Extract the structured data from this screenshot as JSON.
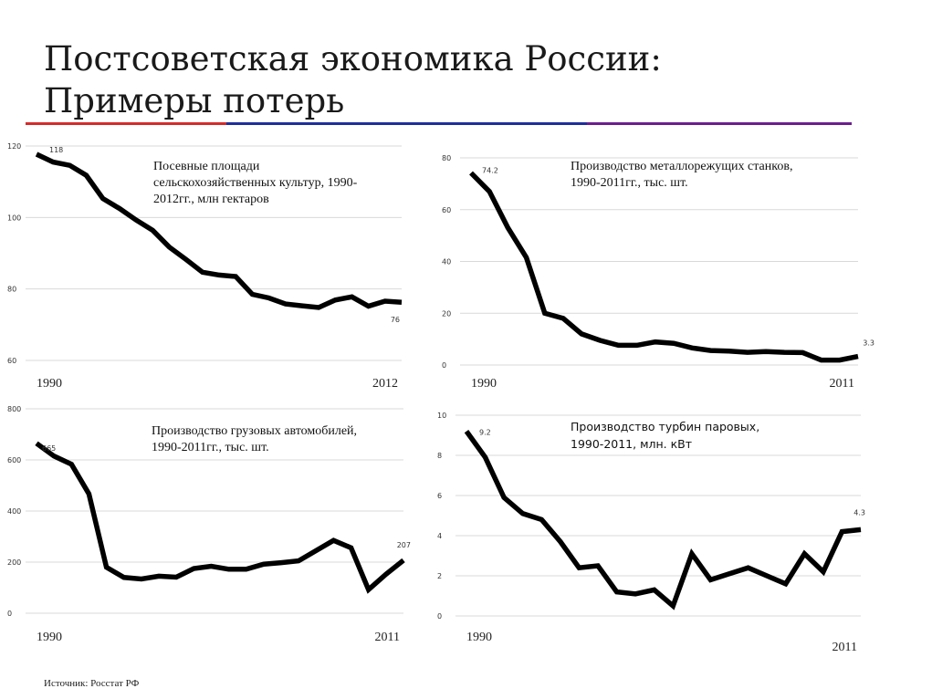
{
  "title_line1": "Постсоветская экономика России:",
  "title_line2": "Примеры потерь",
  "source": "Источник: Росстат РФ",
  "colors": {
    "line": "#000000",
    "grid": "#d9d9d9",
    "rule_segments": [
      "#d52b2b",
      "#1e2f9c",
      "#6d1e8f"
    ]
  },
  "chart_data": [
    {
      "type": "line",
      "title": "Посевные площади сельскохозяйственных культур, 1990-2012гг., млн гектаров",
      "title_lines": [
        "Посевные площади",
        "сельскохозяйственных культур, 1990-",
        "2012гг., млн гектаров"
      ],
      "x": [
        1990,
        1991,
        1992,
        1993,
        1994,
        1995,
        1996,
        1997,
        1998,
        1999,
        2000,
        2001,
        2002,
        2003,
        2004,
        2005,
        2006,
        2007,
        2008,
        2009,
        2010,
        2011,
        2012
      ],
      "y": [
        117.7,
        115.5,
        114.6,
        111.8,
        105.3,
        102.5,
        99.3,
        96.4,
        91.7,
        88.3,
        84.7,
        83.9,
        83.5,
        78.5,
        77.5,
        75.8,
        75.3,
        74.8,
        76.9,
        77.8,
        75.2,
        76.6,
        76.3
      ],
      "ylim": [
        60,
        120
      ],
      "yticks": [
        60,
        80,
        100,
        120
      ],
      "x_start_label": "1990",
      "x_end_label": "2012",
      "start_value_label": "118",
      "end_value_label": "76",
      "grid": true
    },
    {
      "type": "line",
      "title": "Производство металлорежущих станков, 1990-2011гг., тыс. шт.",
      "title_lines": [
        "Производство металлорежущих станков,",
        "1990-2011гг., тыс. шт."
      ],
      "x": [
        1990,
        1991,
        1992,
        1993,
        1994,
        1995,
        1996,
        1997,
        1998,
        1999,
        2000,
        2001,
        2002,
        2003,
        2004,
        2005,
        2006,
        2007,
        2008,
        2009,
        2010,
        2011
      ],
      "y": [
        74.2,
        67.0,
        53.0,
        41.5,
        20.0,
        18.0,
        12.0,
        9.5,
        7.6,
        7.6,
        8.9,
        8.4,
        6.6,
        5.6,
        5.4,
        4.9,
        5.2,
        4.9,
        4.8,
        1.9,
        1.9,
        3.3
      ],
      "ylim": [
        0,
        80
      ],
      "yticks": [
        0,
        20,
        40,
        60,
        80
      ],
      "x_start_label": "1990",
      "x_end_label": "2011",
      "start_value_label": "74.2",
      "end_value_label": "3.3",
      "grid": true
    },
    {
      "type": "line",
      "title": "Производство грузовых автомобилей, 1990-2011гг., тыс. шт.",
      "title_lines": [
        "Производство грузовых автомобилей,",
        "1990-2011гг., тыс. шт."
      ],
      "x": [
        1990,
        1991,
        1992,
        1993,
        1994,
        1995,
        1996,
        1997,
        1998,
        1999,
        2000,
        2001,
        2002,
        2003,
        2004,
        2005,
        2006,
        2007,
        2008,
        2009,
        2010,
        2011
      ],
      "y": [
        665,
        615,
        583,
        467,
        180,
        140,
        134,
        145,
        141,
        175,
        184,
        172,
        172,
        192,
        198,
        205,
        245,
        285,
        256,
        92,
        153,
        207
      ],
      "ylim": [
        0,
        800
      ],
      "yticks": [
        0,
        200,
        400,
        600,
        800
      ],
      "x_start_label": "1990",
      "x_end_label": "2011",
      "start_value_label": "665",
      "end_value_label": "207",
      "grid": true
    },
    {
      "type": "line",
      "title": "Производство турбин паровых, 1990-2011, млн. кВт",
      "title_lines": [
        "Производство турбин паровых,",
        "1990-2011, млн. кВт"
      ],
      "x": [
        1990,
        1991,
        1992,
        1993,
        1994,
        1995,
        1996,
        1997,
        1998,
        1999,
        2000,
        2001,
        2002,
        2003,
        2004,
        2005,
        2006,
        2007,
        2008,
        2009,
        2010,
        2011
      ],
      "y": [
        9.2,
        7.9,
        5.9,
        5.1,
        4.8,
        3.7,
        2.4,
        2.5,
        1.2,
        1.1,
        1.3,
        0.5,
        3.1,
        1.8,
        2.1,
        2.4,
        2.0,
        1.6,
        3.1,
        2.2,
        4.2,
        4.3
      ],
      "ylim": [
        0,
        10
      ],
      "yticks": [
        0,
        2,
        4,
        6,
        8,
        10
      ],
      "x_start_label": "1990",
      "x_end_label": "2011",
      "start_value_label": "9.2",
      "end_value_label": "4.3",
      "grid": true
    }
  ]
}
